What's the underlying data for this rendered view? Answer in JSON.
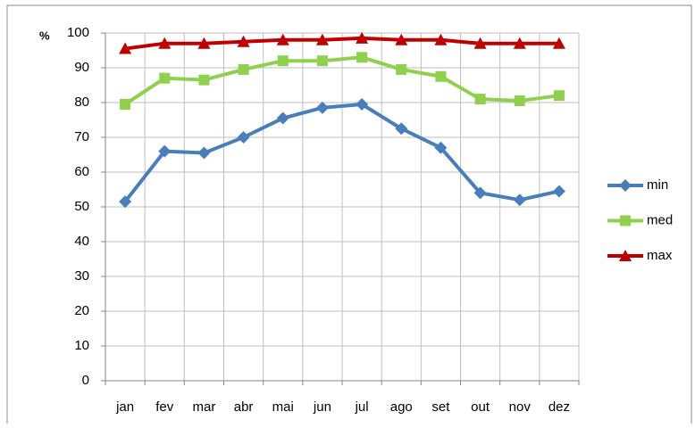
{
  "chart_data": {
    "type": "line",
    "y_axis_label": "%",
    "categories": [
      "jan",
      "fev",
      "mar",
      "abr",
      "mai",
      "jun",
      "jul",
      "ago",
      "set",
      "out",
      "nov",
      "dez"
    ],
    "series": [
      {
        "name": "min",
        "color": "#4a7ebb",
        "marker": "diamond",
        "values": [
          51.5,
          66,
          65.5,
          70,
          75.5,
          78.5,
          79.5,
          72.5,
          67,
          54,
          52,
          54.5
        ]
      },
      {
        "name": "med",
        "color": "#8fd14f",
        "marker": "square",
        "values": [
          79.5,
          87,
          86.5,
          89.5,
          92,
          92,
          93,
          89.5,
          87.5,
          81,
          80.5,
          82
        ]
      },
      {
        "name": "max",
        "color": "#c00000",
        "marker": "triangle",
        "values": [
          95.5,
          97,
          97,
          97.5,
          98,
          98,
          98.5,
          98,
          98,
          97,
          97,
          97
        ]
      }
    ],
    "ylim": [
      0,
      100
    ],
    "yticks": [
      0,
      10,
      20,
      30,
      40,
      50,
      60,
      70,
      80,
      90,
      100
    ],
    "grid": true,
    "legend": "right"
  }
}
